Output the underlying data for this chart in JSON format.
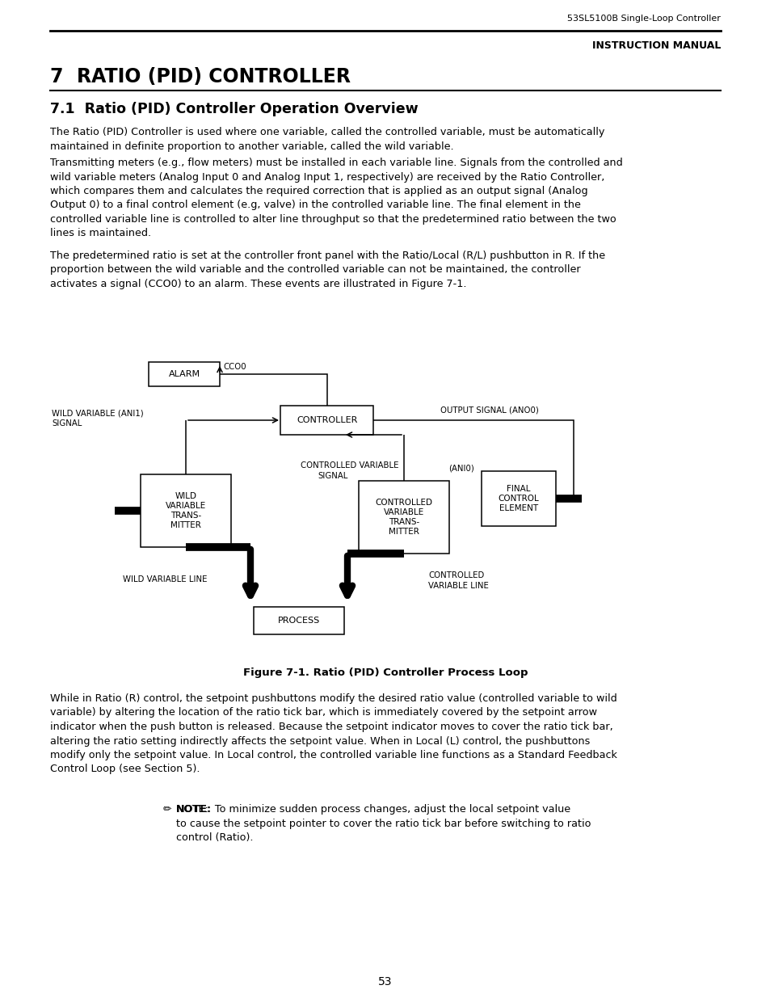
{
  "header_right": "53SL5100B Single-Loop Controller",
  "header_label": "INSTRUCTION MANUAL",
  "chapter_title": "7  RATIO (PID) CONTROLLER",
  "section_title": "7.1  Ratio (PID) Controller Operation Overview",
  "para1": "The Ratio (PID) Controller is used where one variable, called the controlled variable, must be automatically\nmaintained in definite proportion to another variable, called the wild variable.",
  "para2": "Transmitting meters (e.g., flow meters) must be installed in each variable line. Signals from the controlled and\nwild variable meters (Analog Input 0 and Analog Input 1, respectively) are received by the Ratio Controller,\nwhich compares them and calculates the required correction that is applied as an output signal (Analog\nOutput 0) to a final control element (e.g, valve) in the controlled variable line. The final element in the\ncontrolled variable line is controlled to alter line throughput so that the predetermined ratio between the two\nlines is maintained.",
  "para3_pre": "The predetermined ratio is set at the controller front panel with the Ratio/Local (R/L) pushbutton in ",
  "para3_bold": "R",
  "para3_post": ". If the\nproportion between the wild variable and the controlled variable can not be maintained, the controller\nactivates a signal (CCO0) to an alarm. These events are illustrated in Figure 7-1.",
  "fig_caption": "Figure 7-1. Ratio (PID) Controller Process Loop",
  "para4_pre": "While in Ratio (",
  "para4_R": "R",
  "para4_mid": ") control, the setpoint pushbuttons modify the desired ratio value (controlled variable to wild\nvariable) by altering the location of the ratio tick bar, which is immediately covered by the setpoint arrow\nindicator when the push button is released. Because the setpoint indicator moves to cover the ratio tick bar,\naltering the ratio setting indirectly affects the setpoint value. When in Local (",
  "para4_L": "L",
  "para4_post": ") control, the pushbuttons\nmodify only the setpoint value. In Local control, the controlled variable line functions as a Standard Feedback\nControl Loop (see Section 5).",
  "note_label": "NOTE:",
  "note_body": "  To minimize sudden process changes, adjust the local setpoint value\nto cause the setpoint pointer to cover the ratio tick bar before switching to ratio\ncontrol (Ratio).",
  "page_num": "53",
  "bg_color": "#ffffff"
}
